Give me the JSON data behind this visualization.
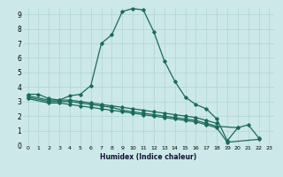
{
  "title": "",
  "xlabel": "Humidex (Indice chaleur)",
  "ylabel": "",
  "bg_color": "#cce8e8",
  "line_color": "#1a6b5a",
  "grid_color": "#b0d4d4",
  "xlim": [
    -0.5,
    23.5
  ],
  "ylim": [
    0,
    9.5
  ],
  "xticks": [
    0,
    1,
    2,
    3,
    4,
    5,
    6,
    7,
    8,
    9,
    10,
    11,
    12,
    13,
    14,
    15,
    16,
    17,
    18,
    19,
    20,
    21,
    22,
    23
  ],
  "yticks": [
    0,
    1,
    2,
    3,
    4,
    5,
    6,
    7,
    8,
    9
  ],
  "line1_x": [
    0,
    1,
    2,
    3,
    4,
    5,
    6,
    7,
    8,
    9,
    10,
    11,
    12,
    13,
    14,
    15,
    16,
    17,
    18,
    19,
    20,
    21,
    22
  ],
  "line1_y": [
    3.5,
    3.5,
    3.2,
    3.1,
    3.4,
    3.5,
    4.1,
    7.0,
    7.6,
    9.2,
    9.4,
    9.3,
    7.8,
    5.8,
    4.4,
    3.3,
    2.8,
    2.5,
    1.8,
    0.3,
    1.2,
    1.4,
    0.5
  ],
  "line2_x": [
    0,
    2,
    3,
    4,
    5,
    6,
    7,
    8,
    9,
    10,
    11,
    12,
    13,
    14,
    15,
    16,
    17,
    18
  ],
  "line2_y": [
    3.4,
    3.1,
    3.1,
    3.1,
    3.0,
    2.9,
    2.8,
    2.7,
    2.6,
    2.5,
    2.4,
    2.3,
    2.2,
    2.1,
    2.0,
    1.9,
    1.7,
    1.5
  ],
  "line3_x": [
    0,
    2,
    3,
    4,
    5,
    6,
    7,
    8,
    9,
    10,
    11,
    12,
    13,
    14,
    15,
    16,
    17,
    18,
    20
  ],
  "line3_y": [
    3.3,
    3.0,
    3.0,
    3.0,
    2.9,
    2.8,
    2.7,
    2.6,
    2.4,
    2.3,
    2.2,
    2.1,
    2.0,
    1.9,
    1.8,
    1.7,
    1.5,
    1.3,
    1.2
  ],
  "line4_x": [
    0,
    2,
    3,
    4,
    5,
    6,
    7,
    8,
    9,
    10,
    11,
    12,
    13,
    14,
    15,
    16,
    17,
    18,
    19,
    22
  ],
  "line4_y": [
    3.2,
    2.9,
    2.9,
    2.8,
    2.7,
    2.6,
    2.5,
    2.4,
    2.3,
    2.2,
    2.1,
    2.0,
    1.9,
    1.8,
    1.7,
    1.6,
    1.4,
    1.2,
    0.2,
    0.4
  ]
}
